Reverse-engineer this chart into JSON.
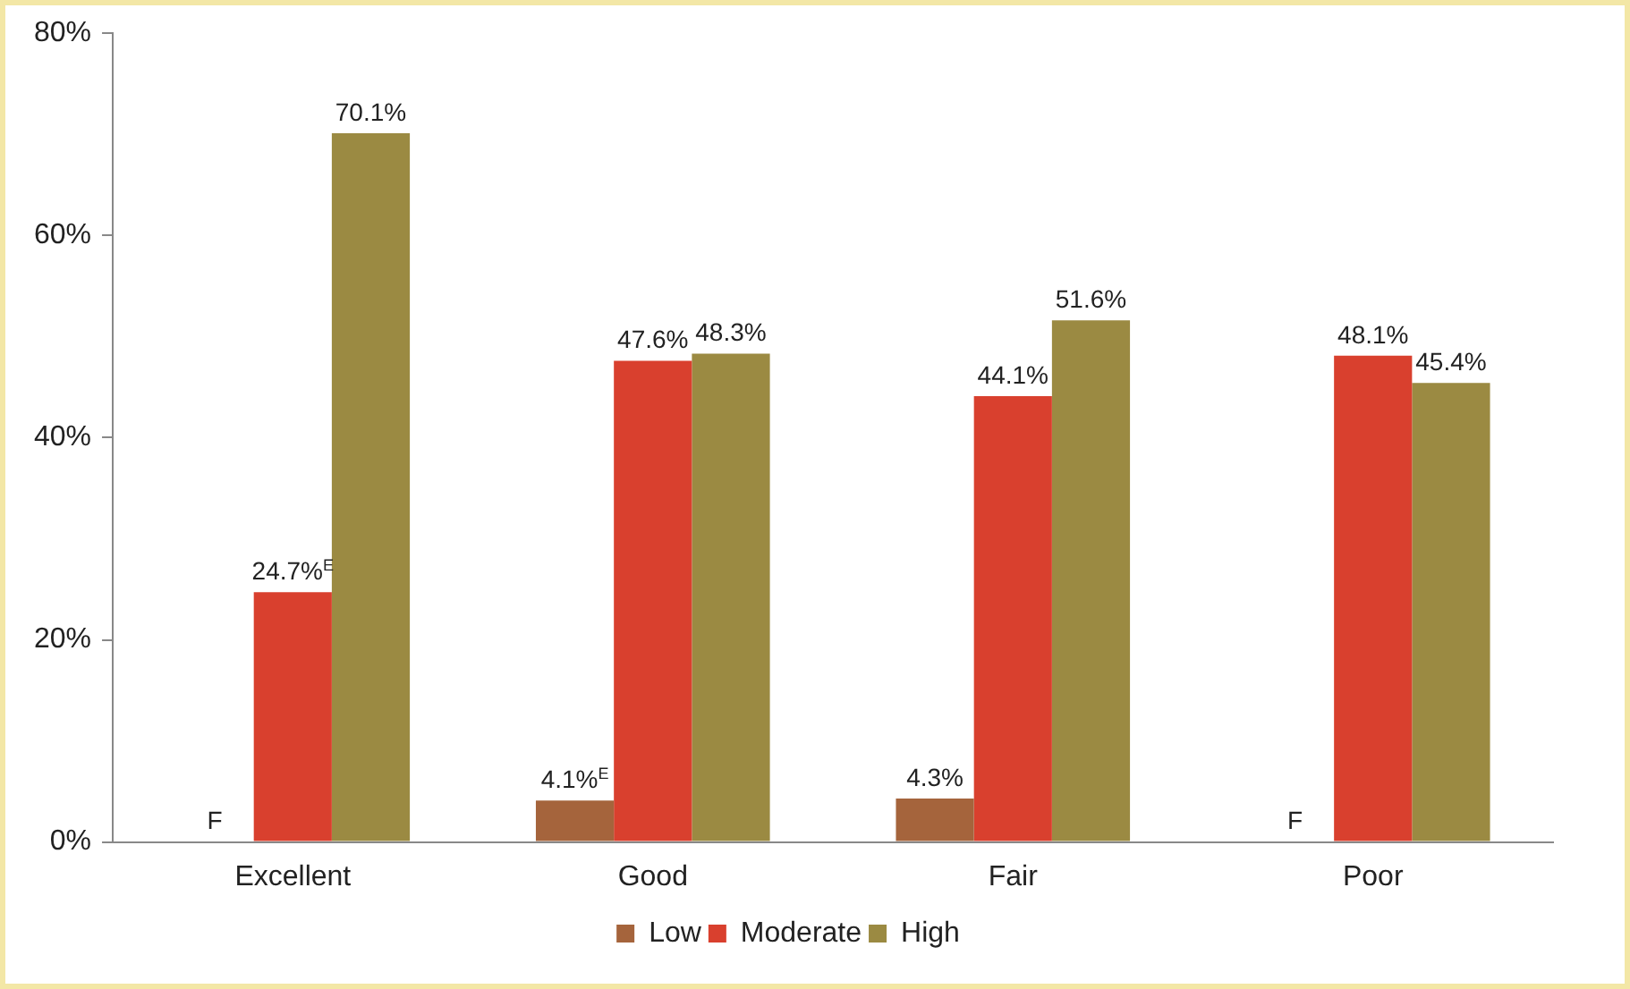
{
  "chart_data": {
    "type": "bar",
    "categories": [
      "Excellent",
      "Good",
      "Fair",
      "Poor"
    ],
    "series": [
      {
        "name": "Low",
        "color": "#a5643c",
        "values": [
          null,
          4.1,
          4.3,
          null
        ],
        "value_labels": [
          "F",
          "4.1%$^{E}$",
          "4.3%",
          "F"
        ]
      },
      {
        "name": "Moderate",
        "color": "#d9402e",
        "values": [
          24.7,
          47.6,
          44.1,
          48.1
        ],
        "value_labels": [
          "24.7%$^{E}$",
          "47.6%",
          "44.1%",
          "48.1%"
        ]
      },
      {
        "name": "High",
        "color": "#9b8a42",
        "values": [
          70.1,
          48.3,
          51.6,
          45.4
        ],
        "value_labels": [
          "70.1%",
          "48.3%",
          "51.6%",
          "45.4%"
        ]
      }
    ],
    "ylim": [
      0,
      80
    ],
    "yticks": [
      {
        "value": 0,
        "label": "0%"
      },
      {
        "value": 20,
        "label": "20%"
      },
      {
        "value": 40,
        "label": "40%"
      },
      {
        "value": 60,
        "label": "60%"
      },
      {
        "value": 80,
        "label": "80%"
      }
    ],
    "grid": false,
    "legend": "bottom"
  }
}
